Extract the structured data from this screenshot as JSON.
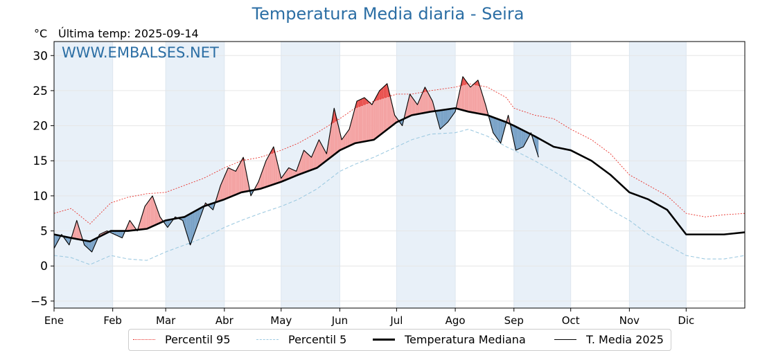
{
  "title": "Temperatura Media diaria - Seira",
  "unit": "°C",
  "last_update": "Última temp: 2025-09-14",
  "watermark": "WWW.EMBALSES.NET",
  "colors": {
    "title": "#2b6ea4",
    "p95": "#e8302a",
    "p5": "#9ecae1",
    "median": "#000000",
    "current": "#000000",
    "above": "#f4a3a3",
    "above_strong": "#e53935",
    "below": "#7aa3c8",
    "below_strong": "#2f6390",
    "month_band": "#e8f0f8"
  },
  "legend": [
    {
      "key": "p95",
      "label": "Percentil 95"
    },
    {
      "key": "p5",
      "label": "Percentil 5"
    },
    {
      "key": "median",
      "label": "Temperatura Mediana"
    },
    {
      "key": "current",
      "label": "T. Media 2025"
    }
  ],
  "chart_data": {
    "type": "line",
    "xlabel": "",
    "ylabel": "°C",
    "xlim": [
      1,
      366
    ],
    "ylim": [
      -6,
      32
    ],
    "yticks": [
      -5,
      0,
      5,
      10,
      15,
      20,
      25,
      30
    ],
    "month_ticks": [
      {
        "label": "Ene",
        "day": 1
      },
      {
        "label": "Feb",
        "day": 32
      },
      {
        "label": "Mar",
        "day": 60
      },
      {
        "label": "Abr",
        "day": 91
      },
      {
        "label": "May",
        "day": 121
      },
      {
        "label": "Jun",
        "day": 152
      },
      {
        "label": "Jul",
        "day": 182
      },
      {
        "label": "Ago",
        "day": 213
      },
      {
        "label": "Sep",
        "day": 244
      },
      {
        "label": "Oct",
        "day": 274
      },
      {
        "label": "Nov",
        "day": 305
      },
      {
        "label": "Dic",
        "day": 335
      }
    ],
    "grid": true,
    "legend_position": "bottom",
    "series": [
      {
        "name": "Percentil 95",
        "key": "p95",
        "points": [
          [
            1,
            7.5
          ],
          [
            10,
            8.2
          ],
          [
            20,
            6.0
          ],
          [
            31,
            9.0
          ],
          [
            40,
            9.8
          ],
          [
            50,
            10.3
          ],
          [
            60,
            10.5
          ],
          [
            70,
            11.5
          ],
          [
            80,
            12.5
          ],
          [
            91,
            14.0
          ],
          [
            100,
            15.0
          ],
          [
            110,
            15.5
          ],
          [
            121,
            16.5
          ],
          [
            130,
            17.5
          ],
          [
            140,
            19.0
          ],
          [
            152,
            21.0
          ],
          [
            160,
            22.5
          ],
          [
            170,
            23.5
          ],
          [
            182,
            24.5
          ],
          [
            190,
            24.5
          ],
          [
            200,
            25.0
          ],
          [
            213,
            25.5
          ],
          [
            220,
            26.0
          ],
          [
            230,
            25.5
          ],
          [
            240,
            24.0
          ],
          [
            244,
            22.5
          ],
          [
            255,
            21.5
          ],
          [
            265,
            21.0
          ],
          [
            274,
            19.5
          ],
          [
            285,
            18.0
          ],
          [
            295,
            16.0
          ],
          [
            305,
            13.0
          ],
          [
            315,
            11.5
          ],
          [
            325,
            10.0
          ],
          [
            335,
            7.5
          ],
          [
            345,
            7.0
          ],
          [
            355,
            7.3
          ],
          [
            366,
            7.5
          ]
        ]
      },
      {
        "name": "Percentil 5",
        "key": "p5",
        "points": [
          [
            1,
            1.5
          ],
          [
            10,
            1.2
          ],
          [
            20,
            0.2
          ],
          [
            31,
            1.5
          ],
          [
            40,
            1.0
          ],
          [
            50,
            0.8
          ],
          [
            60,
            2.0
          ],
          [
            70,
            3.0
          ],
          [
            80,
            4.0
          ],
          [
            91,
            5.5
          ],
          [
            100,
            6.5
          ],
          [
            110,
            7.5
          ],
          [
            121,
            8.5
          ],
          [
            130,
            9.5
          ],
          [
            140,
            11.0
          ],
          [
            152,
            13.5
          ],
          [
            160,
            14.5
          ],
          [
            170,
            15.5
          ],
          [
            182,
            17.0
          ],
          [
            190,
            18.0
          ],
          [
            200,
            18.8
          ],
          [
            213,
            19.0
          ],
          [
            220,
            19.5
          ],
          [
            230,
            18.5
          ],
          [
            240,
            17.0
          ],
          [
            244,
            16.5
          ],
          [
            255,
            15.0
          ],
          [
            265,
            13.5
          ],
          [
            274,
            12.0
          ],
          [
            285,
            10.0
          ],
          [
            295,
            8.0
          ],
          [
            305,
            6.5
          ],
          [
            315,
            4.5
          ],
          [
            325,
            3.0
          ],
          [
            335,
            1.5
          ],
          [
            345,
            1.0
          ],
          [
            355,
            1.0
          ],
          [
            366,
            1.5
          ]
        ]
      },
      {
        "name": "Temperatura Mediana",
        "key": "median",
        "points": [
          [
            1,
            4.5
          ],
          [
            10,
            4.0
          ],
          [
            20,
            3.5
          ],
          [
            31,
            5.0
          ],
          [
            40,
            5.0
          ],
          [
            50,
            5.3
          ],
          [
            60,
            6.5
          ],
          [
            70,
            7.0
          ],
          [
            80,
            8.5
          ],
          [
            91,
            9.5
          ],
          [
            100,
            10.5
          ],
          [
            110,
            11.0
          ],
          [
            121,
            12.0
          ],
          [
            130,
            13.0
          ],
          [
            140,
            14.0
          ],
          [
            152,
            16.5
          ],
          [
            160,
            17.5
          ],
          [
            170,
            18.0
          ],
          [
            182,
            20.5
          ],
          [
            190,
            21.5
          ],
          [
            200,
            22.0
          ],
          [
            213,
            22.5
          ],
          [
            220,
            22.0
          ],
          [
            230,
            21.5
          ],
          [
            240,
            20.5
          ],
          [
            244,
            20.0
          ],
          [
            255,
            18.5
          ],
          [
            265,
            17.0
          ],
          [
            274,
            16.5
          ],
          [
            285,
            15.0
          ],
          [
            295,
            13.0
          ],
          [
            305,
            10.5
          ],
          [
            315,
            9.5
          ],
          [
            325,
            8.0
          ],
          [
            335,
            4.5
          ],
          [
            345,
            4.5
          ],
          [
            355,
            4.5
          ],
          [
            366,
            4.8
          ]
        ]
      },
      {
        "name": "T. Media 2025",
        "key": "current",
        "points": [
          [
            1,
            2.5
          ],
          [
            5,
            4.5
          ],
          [
            9,
            3.0
          ],
          [
            13,
            6.5
          ],
          [
            17,
            3.0
          ],
          [
            21,
            2.0
          ],
          [
            25,
            4.5
          ],
          [
            29,
            5.0
          ],
          [
            33,
            4.5
          ],
          [
            37,
            4.0
          ],
          [
            41,
            6.5
          ],
          [
            45,
            5.0
          ],
          [
            49,
            8.5
          ],
          [
            53,
            10.0
          ],
          [
            57,
            7.0
          ],
          [
            61,
            5.5
          ],
          [
            65,
            7.0
          ],
          [
            69,
            6.5
          ],
          [
            73,
            3.0
          ],
          [
            77,
            6.0
          ],
          [
            81,
            9.0
          ],
          [
            85,
            8.0
          ],
          [
            89,
            11.5
          ],
          [
            93,
            14.0
          ],
          [
            97,
            13.5
          ],
          [
            101,
            15.5
          ],
          [
            105,
            10.0
          ],
          [
            109,
            12.0
          ],
          [
            113,
            15.0
          ],
          [
            117,
            17.0
          ],
          [
            121,
            12.5
          ],
          [
            125,
            14.0
          ],
          [
            129,
            13.5
          ],
          [
            133,
            16.5
          ],
          [
            137,
            15.5
          ],
          [
            141,
            18.0
          ],
          [
            145,
            16.0
          ],
          [
            149,
            22.5
          ],
          [
            153,
            18.0
          ],
          [
            157,
            19.5
          ],
          [
            161,
            23.5
          ],
          [
            165,
            24.0
          ],
          [
            169,
            23.0
          ],
          [
            173,
            25.0
          ],
          [
            177,
            26.0
          ],
          [
            181,
            21.5
          ],
          [
            185,
            20.0
          ],
          [
            189,
            24.5
          ],
          [
            193,
            23.0
          ],
          [
            197,
            25.5
          ],
          [
            201,
            23.5
          ],
          [
            205,
            19.5
          ],
          [
            209,
            20.5
          ],
          [
            213,
            22.0
          ],
          [
            217,
            27.0
          ],
          [
            221,
            25.5
          ],
          [
            225,
            26.5
          ],
          [
            229,
            23.0
          ],
          [
            233,
            19.0
          ],
          [
            237,
            17.5
          ],
          [
            241,
            21.5
          ],
          [
            245,
            16.5
          ],
          [
            249,
            17.0
          ],
          [
            253,
            19.0
          ],
          [
            257,
            15.5
          ]
        ]
      }
    ]
  }
}
